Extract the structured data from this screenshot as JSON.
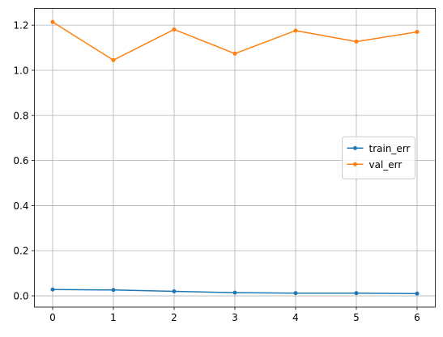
{
  "chart_data": {
    "type": "line",
    "x": [
      0,
      1,
      2,
      3,
      4,
      5,
      6
    ],
    "series": [
      {
        "name": "train_err",
        "color": "#1f77b4",
        "values": [
          0.028,
          0.026,
          0.02,
          0.014,
          0.012,
          0.012,
          0.01
        ]
      },
      {
        "name": "val_err",
        "color": "#ff7f0e",
        "values": [
          1.214,
          1.045,
          1.181,
          1.074,
          1.176,
          1.127,
          1.17
        ]
      }
    ],
    "xlim": [
      -0.3,
      6.3
    ],
    "xticks": [
      0,
      1,
      2,
      3,
      4,
      5,
      6
    ],
    "ylim": [
      -0.05,
      1.274
    ],
    "yticks": [
      {
        "value": 0,
        "label": "0.0"
      },
      0.2,
      0.4,
      0.6,
      0.8,
      {
        "value": 1,
        "label": "1.0"
      },
      1.2
    ],
    "grid": true,
    "legend": "center right",
    "markers": true
  }
}
